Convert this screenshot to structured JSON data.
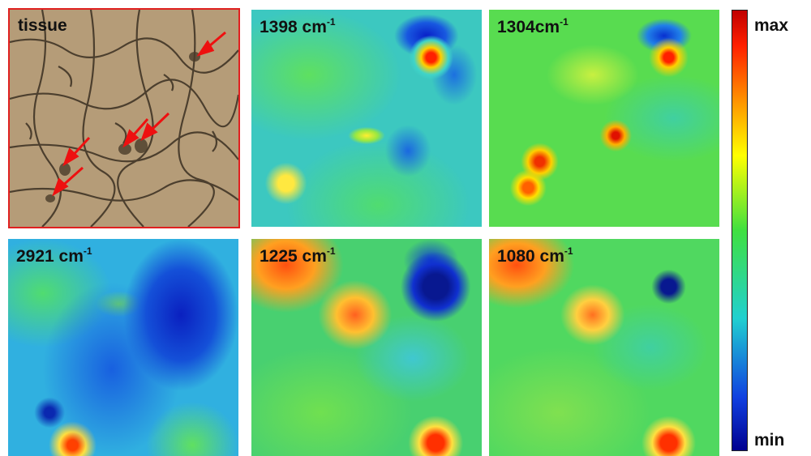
{
  "panels": [
    {
      "label": {
        "text": "tissue"
      }
    },
    {
      "label": {
        "text": "1398 cm",
        "sup": "-1"
      }
    },
    {
      "label": {
        "text": "1304cm",
        "sup": "-1"
      }
    },
    {
      "label": {
        "text": "2921 cm",
        "sup": "-1"
      }
    },
    {
      "label": {
        "text": "1225 cm",
        "sup": "-1"
      }
    },
    {
      "label": {
        "text": "1080 cm",
        "sup": "-1"
      }
    }
  ],
  "colorbar": {
    "top_label": "max",
    "bottom_label": "min"
  }
}
